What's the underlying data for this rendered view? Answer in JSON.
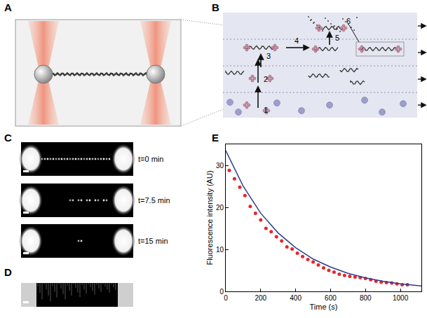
{
  "figure": {
    "panels": {
      "A": {
        "label": "A"
      },
      "B": {
        "label": "B",
        "steps": [
          "1",
          "2",
          "3",
          "4",
          "5",
          "6"
        ]
      },
      "C": {
        "label": "C",
        "times": [
          "t=0 min",
          "t=7.5 min",
          "t=15 min"
        ]
      },
      "D": {
        "label": "D"
      },
      "E": {
        "label": "E"
      }
    }
  },
  "chart_data": {
    "type": "scatter",
    "xlabel": "Time (s)",
    "ylabel": "Fluorescence intensity (AU)",
    "xlim": [
      0,
      1120
    ],
    "xticks": [
      0,
      200,
      400,
      600,
      800,
      1000
    ],
    "ylim": [
      0,
      35
    ],
    "yticks": [
      0,
      10,
      20,
      30
    ],
    "grid": false,
    "series": [
      {
        "type": "scatter",
        "marker": "circle",
        "color": "#e8262b",
        "x": [
          20,
          50,
          80,
          110,
          140,
          170,
          200,
          230,
          260,
          290,
          320,
          350,
          380,
          410,
          440,
          470,
          500,
          530,
          560,
          590,
          620,
          650,
          680,
          710,
          740,
          770,
          800,
          830,
          860,
          890,
          920,
          950,
          980,
          1010,
          1040
        ],
        "values": [
          28.8,
          26.8,
          24.8,
          22.8,
          20.2,
          18.6,
          17.0,
          15.0,
          14.2,
          13.0,
          12.0,
          10.6,
          10.1,
          9.1,
          8.3,
          7.6,
          7.0,
          6.3,
          5.6,
          5.0,
          4.6,
          4.1,
          3.8,
          3.6,
          3.4,
          3.3,
          3.1,
          2.8,
          2.4,
          2.2,
          2.1,
          2.0,
          1.8,
          1.6,
          1.6
        ]
      },
      {
        "type": "line",
        "line_style": "solid",
        "color": "#2b3f8c",
        "x": [
          0,
          100,
          200,
          300,
          400,
          500,
          600,
          700,
          800,
          900,
          1000,
          1120
        ],
        "values": [
          33.5,
          25.0,
          18.6,
          13.9,
          10.4,
          7.7,
          5.8,
          4.3,
          3.2,
          2.4,
          1.8,
          1.3
        ]
      }
    ]
  }
}
